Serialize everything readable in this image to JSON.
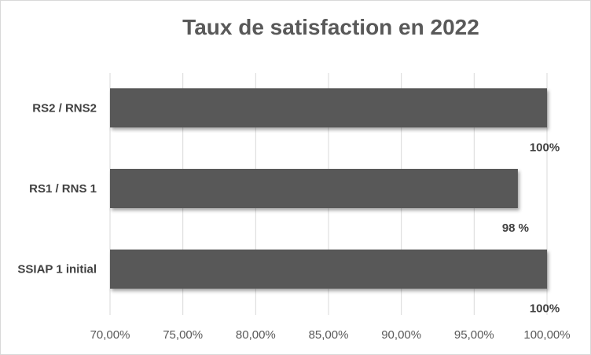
{
  "chart_data": {
    "type": "bar",
    "orientation": "horizontal",
    "title": "Taux de satisfaction  en 2022",
    "categories": [
      "RS2 / RNS2",
      "RS1 / RNS 1",
      "SSIAP 1 initial"
    ],
    "values": [
      100,
      98,
      100
    ],
    "data_labels": [
      "100%",
      "98 %",
      "100%"
    ],
    "xlim": [
      70,
      100
    ],
    "x_ticks": [
      70,
      75,
      80,
      85,
      90,
      95,
      100
    ],
    "x_tick_labels": [
      "70,00%",
      "75,00%",
      "80,00%",
      "85,00%",
      "90,00%",
      "95,00%",
      "100,00%"
    ],
    "grid": true,
    "legend": "none",
    "colors": {
      "bar": "#595959",
      "bar_shadow": "#3a3a3a",
      "grid": "#d9d9d9",
      "text": "#595959"
    }
  }
}
